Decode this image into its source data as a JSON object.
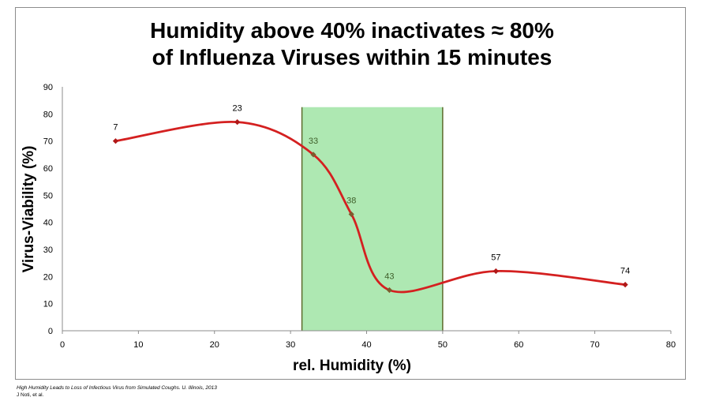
{
  "chart_data": {
    "type": "line",
    "title_lines": [
      "Humidity above 40% inactivates ≈ 80%",
      "of Influenza Viruses within 15 minutes"
    ],
    "xlabel": "rel.  Humidity (%)",
    "ylabel": "Virus-Viability (%)",
    "xlim": [
      0,
      80
    ],
    "ylim": [
      0,
      90
    ],
    "xticks": [
      0,
      10,
      20,
      30,
      40,
      50,
      60,
      70,
      80
    ],
    "yticks": [
      0,
      10,
      20,
      30,
      40,
      50,
      60,
      70,
      80,
      90
    ],
    "grid": false,
    "legend": "none",
    "series": [
      {
        "x": [
          7,
          23,
          33,
          38,
          43,
          57,
          74
        ],
        "y": [
          70,
          77,
          65,
          43,
          15,
          22,
          17
        ],
        "labels": [
          "7",
          "23",
          "33",
          "38",
          "43",
          "57",
          "74"
        ],
        "color": "#d42020"
      }
    ],
    "highlight_band": {
      "x_range": [
        31.5,
        50
      ],
      "y_top": 82.5,
      "fill": "#aee8b2",
      "border": "#5d6b2c"
    }
  },
  "footnote": {
    "citation": "High Humidity Leads to Loss of Infectious Virus from Simulated Coughs. U. Illinois, 2013",
    "authors": "J Noti, et al."
  }
}
